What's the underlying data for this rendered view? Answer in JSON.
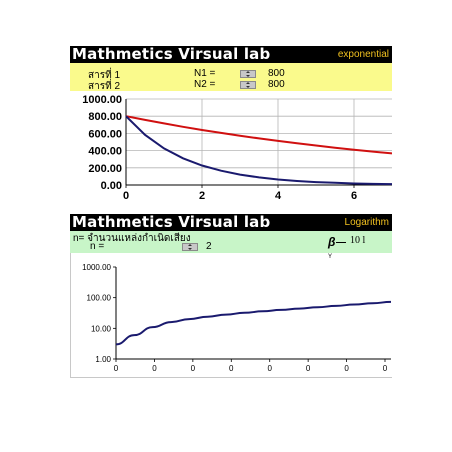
{
  "exp_panel": {
    "title": "Mathmetics Virsual lab",
    "tag": "exponential",
    "row1": {
      "label": "สารที่ 1",
      "param": "N1 =",
      "value": "800"
    },
    "row2": {
      "label": "สารที่ 2",
      "param": "N2 =",
      "value": "800"
    }
  },
  "log_panel": {
    "title": "Mathmetics Virsual lab",
    "tag": "Logarithm",
    "description": "n=  จำนวนแหล่งกำเนิดเสียง",
    "n_label": "n  =",
    "n_value": "2",
    "formula_text": "10  l",
    "y_axis_marker": "Y"
  },
  "colors": {
    "title_bg": "#000000",
    "exp_control_bg": "#fafa8c",
    "log_control_bg": "#c8f5c8",
    "series_red": "#d01010",
    "series_navy": "#1a1a6e"
  },
  "chart_data": [
    {
      "type": "line",
      "x": [
        0,
        0.5,
        1,
        1.5,
        2,
        2.5,
        3,
        3.5,
        4,
        4.5,
        5,
        5.5,
        6,
        6.5,
        7
      ],
      "series": [
        {
          "color": "#d01010",
          "values": [
            800,
            757,
            716,
            677,
            640,
            606,
            573,
            542,
            513,
            485,
            459,
            434,
            410,
            388,
            367
          ]
        },
        {
          "color": "#1a1a6e",
          "values": [
            800,
            584,
            426,
            311,
            227,
            166,
            121,
            88,
            64,
            47,
            34,
            25,
            18,
            13,
            10
          ]
        }
      ],
      "xlim": [
        0,
        7
      ],
      "ylim": [
        0,
        1000
      ],
      "x_ticks": [
        "0",
        "2",
        "4",
        "6"
      ],
      "y_ticks": [
        "0.00",
        "200.00",
        "400.00",
        "600.00",
        "800.00",
        "1000.00"
      ],
      "grid": true
    },
    {
      "type": "line",
      "x": [
        0,
        0.5,
        1,
        1.5,
        2,
        2.5,
        3,
        3.5,
        4,
        4.5,
        5,
        5.5,
        6,
        6.5,
        7,
        7.5
      ],
      "series": [
        {
          "color": "#1a1a6e",
          "values": [
            3,
            6,
            11,
            16,
            20,
            24,
            28,
            32,
            36,
            40,
            44,
            49,
            54,
            60,
            66,
            73
          ]
        }
      ],
      "y_scale": "log",
      "ylim": [
        1,
        1000
      ],
      "x_ticks": [
        "0",
        "0",
        "0",
        "0",
        "0",
        "0",
        "0",
        "0"
      ],
      "y_ticks": [
        "1.00",
        "10.00",
        "100.00",
        "1000.00"
      ],
      "grid": false
    }
  ]
}
